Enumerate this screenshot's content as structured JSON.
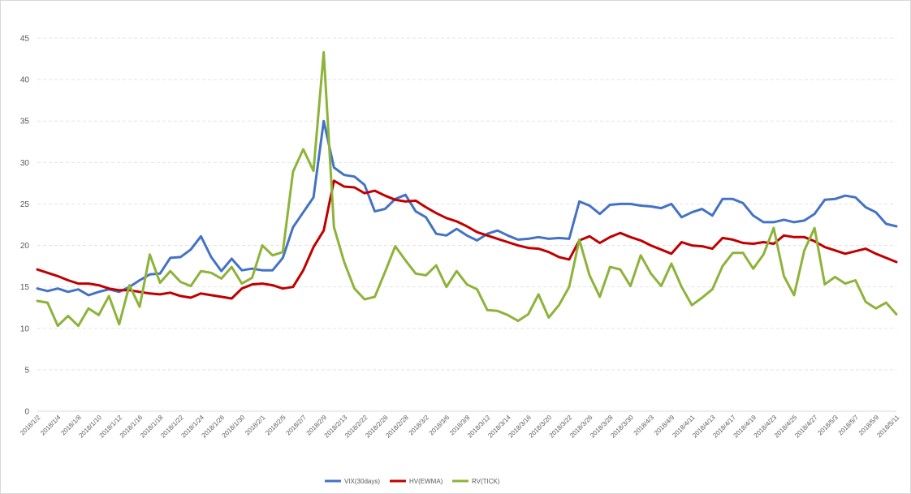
{
  "chart_data": {
    "type": "line",
    "title": "",
    "xlabel": "",
    "ylabel": "",
    "ylim": [
      0,
      45
    ],
    "yticks": [
      0,
      5,
      10,
      15,
      20,
      25,
      30,
      35,
      40,
      45
    ],
    "grid": "horizontal dashed",
    "legend_position": "bottom",
    "x": [
      "2018/1/2",
      "2018/1/3",
      "2018/1/4",
      "2018/1/5",
      "2018/1/8",
      "2018/1/9",
      "2018/1/10",
      "2018/1/11",
      "2018/1/12",
      "2018/1/15",
      "2018/1/16",
      "2018/1/17",
      "2018/1/18",
      "2018/1/19",
      "2018/1/22",
      "2018/1/23",
      "2018/1/24",
      "2018/1/25",
      "2018/1/26",
      "2018/1/29",
      "2018/1/30",
      "2018/1/31",
      "2018/2/1",
      "2018/2/2",
      "2018/2/5",
      "2018/2/6",
      "2018/2/7",
      "2018/2/8",
      "2018/2/9",
      "2018/2/12",
      "2018/2/13",
      "2018/2/14",
      "2018/2/22",
      "2018/2/23",
      "2018/2/26",
      "2018/2/27",
      "2018/2/28",
      "2018/3/1",
      "2018/3/2",
      "2018/3/5",
      "2018/3/6",
      "2018/3/7",
      "2018/3/8",
      "2018/3/9",
      "2018/3/12",
      "2018/3/13",
      "2018/3/14",
      "2018/3/15",
      "2018/3/16",
      "2018/3/19",
      "2018/3/20",
      "2018/3/21",
      "2018/3/22",
      "2018/3/23",
      "2018/3/26",
      "2018/3/27",
      "2018/3/28",
      "2018/3/29",
      "2018/3/30",
      "2018/4/2",
      "2018/4/3",
      "2018/4/4",
      "2018/4/9",
      "2018/4/10",
      "2018/4/11",
      "2018/4/12",
      "2018/4/13",
      "2018/4/16",
      "2018/4/17",
      "2018/4/18",
      "2018/4/19",
      "2018/4/20",
      "2018/4/23",
      "2018/4/24",
      "2018/4/25",
      "2018/4/26",
      "2018/4/27",
      "2018/5/2",
      "2018/5/3",
      "2018/5/4",
      "2018/5/7",
      "2018/5/8",
      "2018/5/9",
      "2018/5/10",
      "2018/5/11"
    ],
    "xtick_labels": [
      "2018/1/2",
      "2018/1/4",
      "2018/1/8",
      "2018/1/10",
      "2018/1/12",
      "2018/1/16",
      "2018/1/18",
      "2018/1/22",
      "2018/1/24",
      "2018/1/26",
      "2018/1/30",
      "2018/2/1",
      "2018/2/5",
      "2018/2/7",
      "2018/2/9",
      "2018/2/13",
      "2018/2/22",
      "2018/2/26",
      "2018/2/28",
      "2018/3/2",
      "2018/3/6",
      "2018/3/8",
      "2018/3/12",
      "2018/3/14",
      "2018/3/16",
      "2018/3/20",
      "2018/3/22",
      "2018/3/26",
      "2018/3/28",
      "2018/3/30",
      "2018/4/3",
      "2018/4/9",
      "2018/4/11",
      "2018/4/13",
      "2018/4/17",
      "2018/4/19",
      "2018/4/23",
      "2018/4/25",
      "2018/4/27",
      "2018/5/3",
      "2018/5/7",
      "2018/5/9",
      "2018/5/11"
    ],
    "series": [
      {
        "name": "VIX(30days)",
        "color": "#4472c4",
        "values": [
          14.8,
          14.5,
          14.8,
          14.4,
          14.7,
          14.0,
          14.4,
          14.7,
          14.4,
          15.0,
          15.8,
          16.5,
          16.6,
          18.5,
          18.6,
          19.5,
          21.1,
          18.6,
          16.9,
          18.4,
          17.0,
          17.2,
          17.0,
          17.0,
          18.5,
          22.2,
          24.0,
          25.8,
          35.0,
          29.4,
          28.5,
          28.3,
          27.3,
          24.1,
          24.4,
          25.6,
          26.1,
          24.1,
          23.4,
          21.4,
          21.2,
          22.0,
          21.2,
          20.6,
          21.4,
          21.8,
          21.2,
          20.7,
          20.8,
          21.0,
          20.8,
          20.9,
          20.8,
          25.3,
          24.8,
          23.8,
          24.9,
          25.0,
          25.0,
          24.8,
          24.7,
          24.5,
          25.0,
          23.4,
          24.0,
          24.4,
          23.6,
          25.6,
          25.6,
          25.1,
          23.6,
          22.8,
          22.8,
          23.1,
          22.8,
          23.0,
          23.8,
          25.5,
          25.6,
          26.0,
          25.8,
          24.6,
          24.0,
          22.6,
          22.3
        ]
      },
      {
        "name": "HV(EWMA)",
        "color": "#c00000",
        "values": [
          17.1,
          16.7,
          16.3,
          15.8,
          15.4,
          15.4,
          15.2,
          14.8,
          14.6,
          14.6,
          14.4,
          14.2,
          14.1,
          14.3,
          13.9,
          13.7,
          14.2,
          14.0,
          13.8,
          13.6,
          14.8,
          15.3,
          15.4,
          15.2,
          14.8,
          15.0,
          17.0,
          19.8,
          21.8,
          27.8,
          27.1,
          27.0,
          26.3,
          26.6,
          26.0,
          25.5,
          25.3,
          25.4,
          24.6,
          23.9,
          23.3,
          22.9,
          22.3,
          21.6,
          21.2,
          20.8,
          20.4,
          20.0,
          19.7,
          19.6,
          19.2,
          18.6,
          18.3,
          20.6,
          21.1,
          20.3,
          21.0,
          21.5,
          21.0,
          20.6,
          20.0,
          19.5,
          19.0,
          20.4,
          20.0,
          19.9,
          19.6,
          20.9,
          20.7,
          20.3,
          20.2,
          20.4,
          20.2,
          21.2,
          21.0,
          21.0,
          20.5,
          19.8,
          19.4,
          19.0,
          19.3,
          19.6,
          19.0,
          18.5,
          18.0
        ]
      },
      {
        "name": "RV(TICK)",
        "color": "#8db33a",
        "values": [
          13.3,
          13.1,
          10.3,
          11.5,
          10.3,
          12.4,
          11.6,
          13.9,
          10.5,
          15.2,
          12.6,
          18.9,
          15.5,
          16.9,
          15.6,
          15.1,
          16.9,
          16.7,
          16.0,
          17.4,
          15.4,
          16.1,
          20.0,
          18.8,
          19.2,
          28.9,
          31.6,
          29.0,
          43.3,
          22.2,
          18.0,
          14.8,
          13.5,
          13.8,
          16.8,
          19.9,
          18.2,
          16.6,
          16.4,
          17.6,
          15.0,
          16.9,
          15.3,
          14.7,
          12.2,
          12.1,
          11.6,
          10.9,
          11.7,
          14.1,
          11.3,
          12.8,
          15.0,
          20.7,
          16.4,
          13.8,
          17.4,
          17.1,
          15.1,
          18.8,
          16.6,
          15.1,
          17.8,
          15.0,
          12.8,
          13.7,
          14.7,
          17.5,
          19.1,
          19.1,
          17.2,
          18.9,
          22.1,
          16.3,
          14.0,
          19.4,
          22.1,
          15.3,
          16.2,
          15.4,
          15.8,
          13.2,
          12.4,
          13.1,
          11.7
        ]
      }
    ]
  }
}
